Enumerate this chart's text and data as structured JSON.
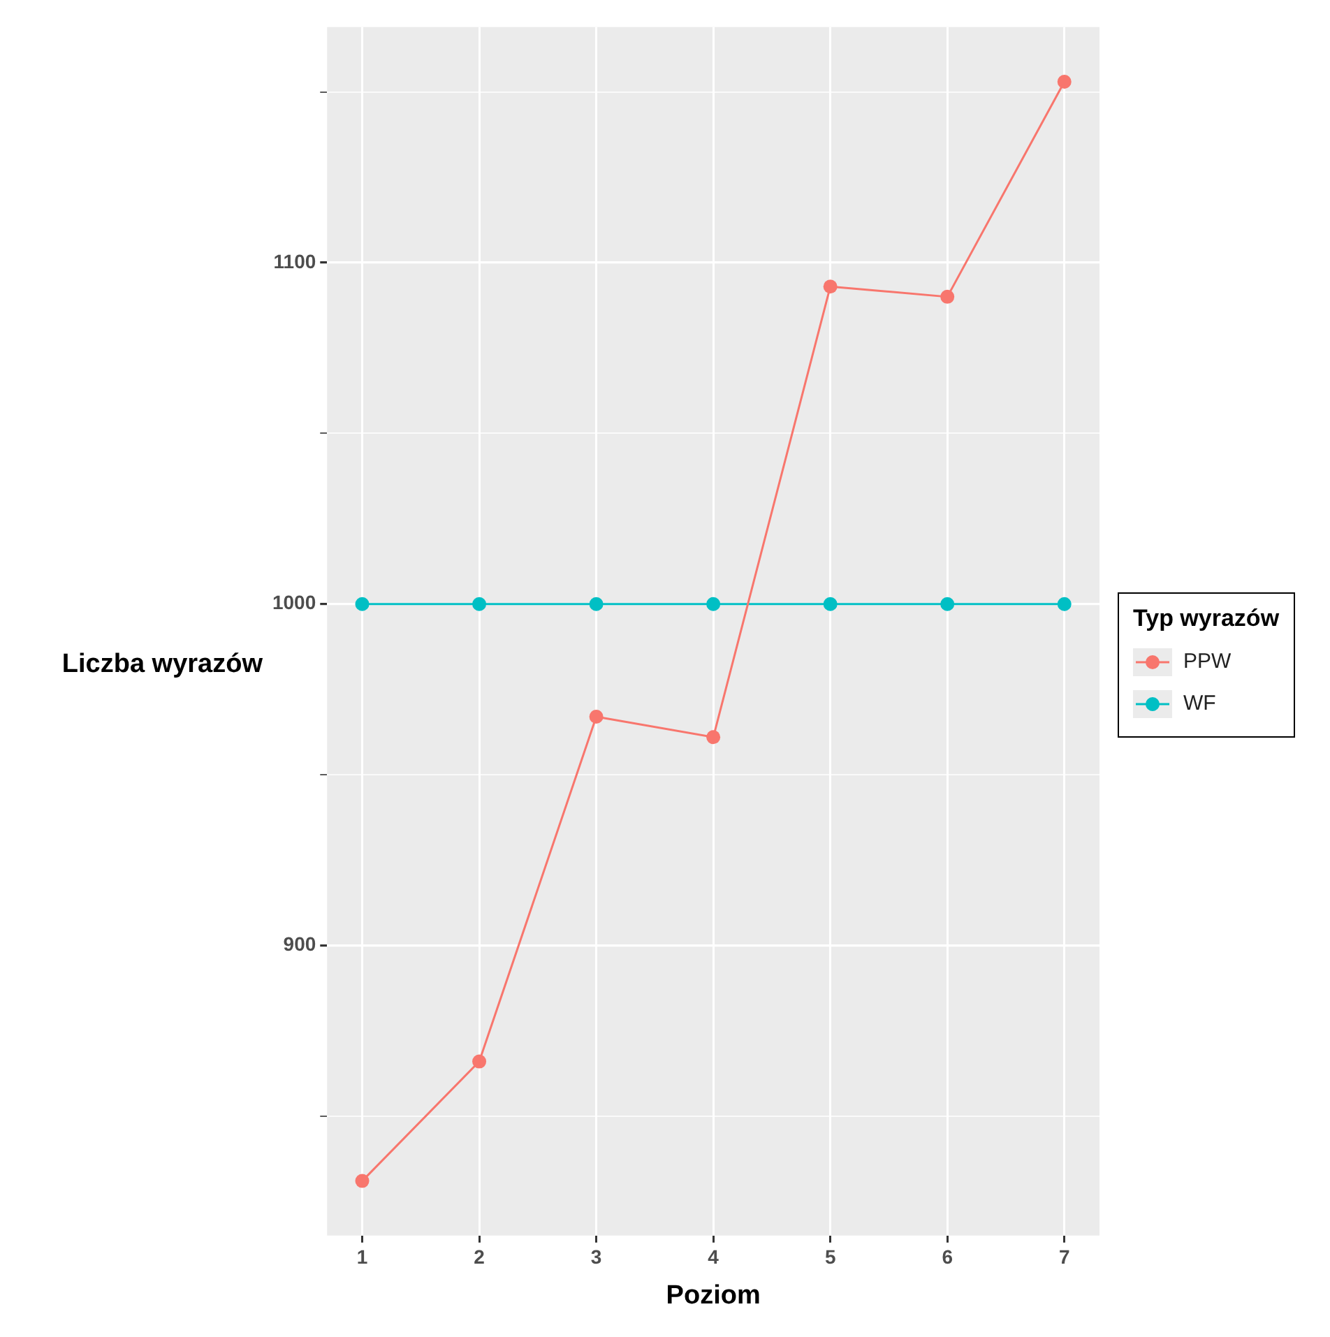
{
  "chart_data": {
    "type": "line",
    "xlabel": "Poziom",
    "ylabel": "Liczba wyrazów",
    "legend_title": "Typ wyrazów",
    "x": [
      1,
      2,
      3,
      4,
      5,
      6,
      7
    ],
    "series": [
      {
        "name": "PPW",
        "color": "#f8766d",
        "values": [
          831,
          866,
          967,
          961,
          1093,
          1090,
          1153
        ]
      },
      {
        "name": "WF",
        "color": "#00bfc4",
        "values": [
          1000,
          1000,
          1000,
          1000,
          1000,
          1000,
          1000
        ]
      }
    ],
    "xlim": [
      0.7,
      7.3
    ],
    "xticks": [
      1,
      2,
      3,
      4,
      5,
      6,
      7
    ],
    "ylim": [
      815,
      1169
    ],
    "yticks": [
      {
        "value": 850,
        "label": null
      },
      900,
      {
        "value": 950,
        "label": null
      },
      1000,
      {
        "value": 1050,
        "label": null
      },
      1100,
      {
        "value": 1150,
        "label": null
      }
    ],
    "grid": true,
    "legend": "right",
    "marker": "circle",
    "line_style": "solid"
  }
}
